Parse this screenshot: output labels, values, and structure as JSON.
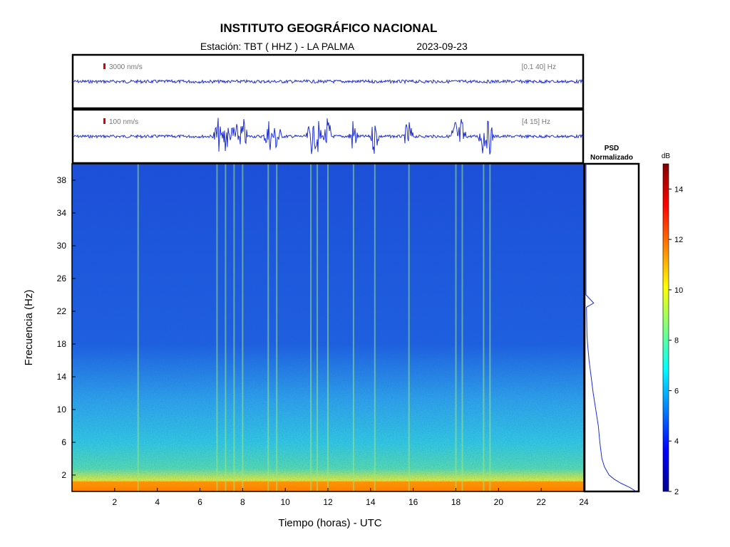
{
  "header": {
    "title": "INSTITUTO GEOGRÁFICO NACIONAL",
    "station": "Estación:  TBT ( HHZ ) - LA PALMA",
    "date": "2023-09-23"
  },
  "chart_data": [
    {
      "type": "line",
      "panel": "seismogram-broadband",
      "scale_label": "3000 nm/s",
      "filter_label": "[0.1 40] Hz",
      "x_range": [
        0,
        24
      ],
      "color": "#1f2fd6",
      "scale_color": "#dd0000",
      "events_hours": []
    },
    {
      "type": "line",
      "panel": "seismogram-filtered",
      "scale_label": "100 nm/s",
      "filter_label": "[4 15] Hz",
      "x_range": [
        0,
        24
      ],
      "color": "#1f2fd6",
      "scale_color": "#dd0000",
      "events_hours": [
        6.8,
        7.2,
        7.6,
        8.0,
        9.2,
        9.6,
        11.2,
        11.5,
        12.0,
        13.2,
        14.2,
        15.8,
        18.0,
        18.3,
        19.3,
        19.6
      ]
    },
    {
      "type": "heatmap",
      "panel": "spectrogram",
      "xlabel": "Tiempo (horas) - UTC",
      "ylabel": "Frecuencia  (Hz)",
      "xlim": [
        0,
        24
      ],
      "ylim": [
        0,
        40
      ],
      "xticks": [
        2,
        4,
        6,
        8,
        10,
        12,
        14,
        16,
        18,
        20,
        22,
        24
      ],
      "yticks": [
        2,
        6,
        10,
        14,
        18,
        22,
        26,
        30,
        34,
        38
      ],
      "events_hours": [
        3.1,
        6.8,
        7.2,
        7.6,
        8.0,
        9.2,
        9.6,
        11.2,
        11.5,
        12.0,
        13.2,
        14.2,
        15.8,
        18.0,
        18.3,
        19.3,
        19.6
      ]
    },
    {
      "type": "line",
      "panel": "psd",
      "title": "PSD",
      "subtitle": "Normalizado",
      "ylim": [
        0,
        40
      ],
      "points": [
        [
          0.0,
          0.98
        ],
        [
          0.5,
          0.85
        ],
        [
          1.0,
          0.68
        ],
        [
          1.5,
          0.55
        ],
        [
          2.0,
          0.45
        ],
        [
          3.0,
          0.36
        ],
        [
          4.0,
          0.31
        ],
        [
          6.0,
          0.27
        ],
        [
          8.0,
          0.24
        ],
        [
          10.0,
          0.19
        ],
        [
          12.0,
          0.14
        ],
        [
          14.0,
          0.1
        ],
        [
          16.0,
          0.06
        ],
        [
          18.0,
          0.03
        ],
        [
          19.0,
          0.02
        ],
        [
          22.5,
          0.01
        ],
        [
          23.0,
          0.15
        ],
        [
          24.0,
          0.0
        ],
        [
          40.0,
          0.0
        ]
      ]
    },
    {
      "type": "heatmap",
      "panel": "colorbar",
      "label": "dB",
      "range": [
        2,
        15
      ],
      "ticks": [
        2,
        4,
        6,
        8,
        10,
        12,
        14
      ]
    }
  ]
}
